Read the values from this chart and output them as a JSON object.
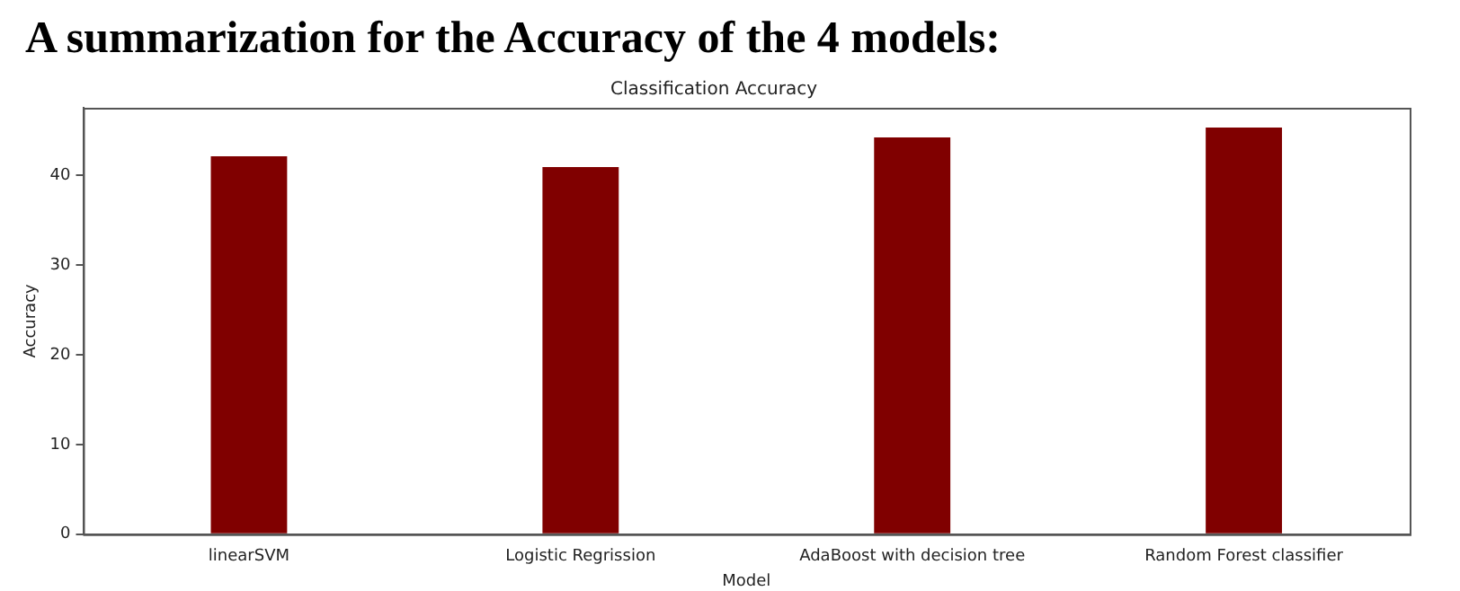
{
  "chart_data": {
    "type": "bar",
    "title": "A summarization for the Accuracy of the 4 models:",
    "subtitle": "Classification Accuracy",
    "xlabel": "Model",
    "ylabel": "Accuracy",
    "categories": [
      "linearSVM",
      "Logistic Regrission",
      "AdaBoost with decision tree",
      "Random Forest classifier"
    ],
    "values": [
      42.1,
      40.9,
      44.2,
      45.3
    ],
    "color": "#800000",
    "ylim": [
      0,
      47.5
    ],
    "yticks": [
      0,
      10,
      20,
      30,
      40
    ],
    "grid": false,
    "legend": false
  }
}
